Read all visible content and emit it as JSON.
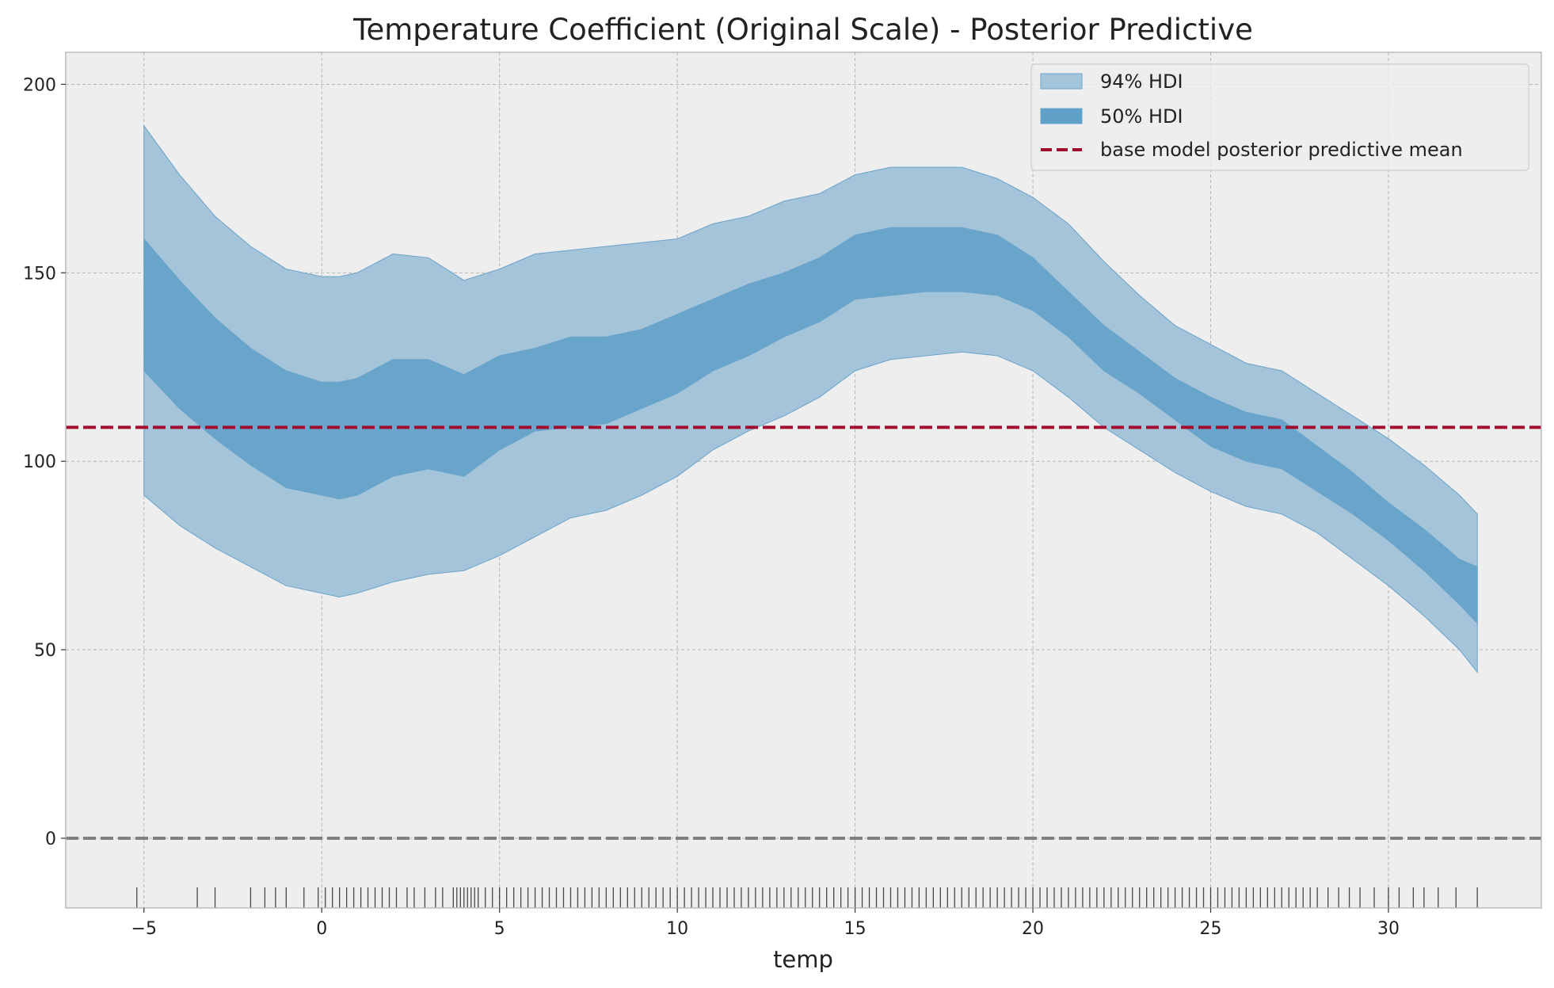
{
  "chart_data": {
    "type": "area",
    "title": "Temperature Coefficient (Original Scale) - Posterior Predictive",
    "xlabel": "temp",
    "ylabel": "",
    "xlim": [
      -7.2,
      34.3
    ],
    "ylim": [
      -18.5,
      208.5
    ],
    "xticks": [
      -5,
      0,
      5,
      10,
      15,
      20,
      25,
      30
    ],
    "xtick_labels": [
      "−5",
      "0",
      "5",
      "10",
      "15",
      "20",
      "25",
      "30"
    ],
    "yticks": [
      0,
      50,
      100,
      150,
      200
    ],
    "ytick_labels": [
      "0",
      "50",
      "100",
      "150",
      "200"
    ],
    "grid": true,
    "legend_position": "top-right",
    "colors": {
      "hdi94": "#a3c4d9",
      "hdi50": "#5fa0c8",
      "edge": "#6aa3ca",
      "mean_line": "#a20c2f",
      "zero_line": "#808080",
      "rug": "#000000",
      "background": "#eeeeee",
      "grid": "#b4b4b4"
    },
    "x": [
      -5,
      -4,
      -3,
      -2,
      -1,
      0,
      0.5,
      1,
      2,
      3,
      4,
      5,
      6,
      7,
      8,
      9,
      10,
      11,
      12,
      13,
      14,
      15,
      16,
      17,
      18,
      19,
      20,
      21,
      22,
      23,
      24,
      25,
      26,
      27,
      28,
      29,
      30,
      31,
      32,
      32.5
    ],
    "series": [
      {
        "name": "94% HDI",
        "lower": [
          91,
          83,
          77,
          72,
          67,
          65,
          64,
          65,
          68,
          70,
          71,
          75,
          80,
          85,
          87,
          91,
          96,
          103,
          108,
          112,
          117,
          124,
          127,
          128,
          129,
          128,
          124,
          117,
          109,
          103,
          97,
          92,
          88,
          86,
          81,
          74,
          67,
          59,
          50,
          44
        ],
        "upper": [
          189,
          176,
          165,
          157,
          151,
          149,
          149,
          150,
          155,
          154,
          148,
          151,
          155,
          156,
          157,
          158,
          159,
          163,
          165,
          169,
          171,
          176,
          178,
          178,
          178,
          175,
          170,
          163,
          153,
          144,
          136,
          131,
          126,
          124,
          118,
          112,
          106,
          99,
          91,
          86
        ]
      },
      {
        "name": "50% HDI",
        "lower": [
          124,
          114,
          106,
          99,
          93,
          91,
          90,
          91,
          96,
          98,
          96,
          103,
          108,
          109,
          110,
          114,
          118,
          124,
          128,
          133,
          137,
          143,
          144,
          145,
          145,
          144,
          140,
          133,
          124,
          118,
          111,
          104,
          100,
          98,
          92,
          86,
          79,
          71,
          62,
          57
        ],
        "upper": [
          159,
          148,
          138,
          130,
          124,
          121,
          121,
          122,
          127,
          127,
          123,
          128,
          130,
          133,
          133,
          135,
          139,
          143,
          147,
          150,
          154,
          160,
          162,
          162,
          162,
          160,
          154,
          145,
          136,
          129,
          122,
          117,
          113,
          111,
          104,
          97,
          89,
          82,
          74,
          72
        ]
      }
    ],
    "mean_line": {
      "name": "base model posterior predictive mean",
      "y": 109
    },
    "zero_line": {
      "y": 0
    },
    "rug_x": [
      -5.2,
      -3.5,
      -3.0,
      -2.0,
      -1.6,
      -1.3,
      -1.0,
      -0.5,
      -0.1,
      0.1,
      0.3,
      0.5,
      0.7,
      0.9,
      1.1,
      1.3,
      1.5,
      1.7,
      1.9,
      2.1,
      2.4,
      2.6,
      2.9,
      3.2,
      3.4,
      3.7,
      3.8,
      3.9,
      4.0,
      4.1,
      4.2,
      4.3,
      4.4,
      4.6,
      4.8,
      5.0,
      5.2,
      5.4,
      5.6,
      5.8,
      6.0,
      6.2,
      6.4,
      6.6,
      6.8,
      7.0,
      7.2,
      7.4,
      7.6,
      7.8,
      8.0,
      8.2,
      8.4,
      8.6,
      8.8,
      9.0,
      9.2,
      9.4,
      9.6,
      9.8,
      10.0,
      10.2,
      10.4,
      10.6,
      10.8,
      11.0,
      11.2,
      11.4,
      11.6,
      11.8,
      12.0,
      12.2,
      12.4,
      12.6,
      12.8,
      13.0,
      13.2,
      13.4,
      13.6,
      13.8,
      14.0,
      14.2,
      14.4,
      14.6,
      14.8,
      15.0,
      15.2,
      15.4,
      15.6,
      15.8,
      16.0,
      16.2,
      16.4,
      16.6,
      16.8,
      17.0,
      17.2,
      17.4,
      17.6,
      17.8,
      18.0,
      18.2,
      18.4,
      18.6,
      18.8,
      19.0,
      19.2,
      19.4,
      19.6,
      19.8,
      20.0,
      20.2,
      20.4,
      20.6,
      20.8,
      21.0,
      21.2,
      21.4,
      21.6,
      21.8,
      22.0,
      22.2,
      22.4,
      22.6,
      22.8,
      23.0,
      23.2,
      23.4,
      23.6,
      23.8,
      24.0,
      24.2,
      24.4,
      24.6,
      24.8,
      25.0,
      25.2,
      25.4,
      25.6,
      25.8,
      26.0,
      26.2,
      26.4,
      26.6,
      26.8,
      27.0,
      27.2,
      27.4,
      27.6,
      27.8,
      28.0,
      28.3,
      28.6,
      28.9,
      29.2,
      29.6,
      30.0,
      30.3,
      30.7,
      31.0,
      31.4,
      31.9,
      32.5
    ]
  }
}
